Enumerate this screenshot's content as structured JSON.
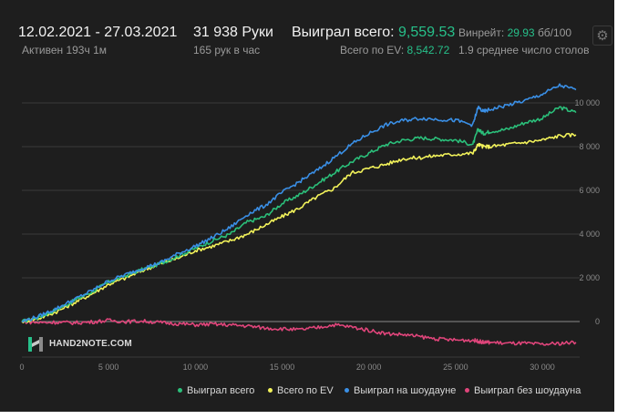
{
  "header": {
    "date_range": "12.02.2021 - 27.03.2021",
    "active": "Активен 193ч 1м",
    "hands": "31 938 Руки",
    "hands_per_hour": "165 рук в час",
    "won_total_label": "Выиграл всего:",
    "won_total_value": "9,559.53",
    "ev_total_label": "Всего по EV:",
    "ev_total_value": "8,542.72",
    "winrate_label": "Винрейт:",
    "winrate_value": "29.93",
    "winrate_unit": "бб/100",
    "avg_tables": "1.9 среднее число столов"
  },
  "logo": {
    "text": "HAND2NOTE.COM"
  },
  "colors": {
    "won_total": "#2bbf7a",
    "ev": "#f2f25a",
    "showdown": "#3a8fe6",
    "non_showdown": "#e0457b"
  },
  "chart_data": {
    "type": "line",
    "xlim": [
      0,
      31938
    ],
    "ylim": [
      -1200,
      10900
    ],
    "x_ticks": [
      {
        "value": 0,
        "label": "0"
      },
      {
        "value": 5000,
        "label": "5 000"
      },
      {
        "value": 10000,
        "label": "10 000"
      },
      {
        "value": 15000,
        "label": "15 000"
      },
      {
        "value": 20000,
        "label": "20 000"
      },
      {
        "value": 25000,
        "label": "25 000"
      },
      {
        "value": 30000,
        "label": "30 000"
      }
    ],
    "y_ticks": [
      {
        "value": 0,
        "label": "0"
      },
      {
        "value": 2000,
        "label": "2 000"
      },
      {
        "value": 4000,
        "label": "4 000"
      },
      {
        "value": 6000,
        "label": "6 000"
      },
      {
        "value": 8000,
        "label": "8 000"
      },
      {
        "value": 10000,
        "label": "10 000"
      }
    ],
    "grid": true,
    "legend_position": "bottom-right",
    "x": [
      0,
      1000,
      2000,
      3000,
      4000,
      5000,
      6000,
      7000,
      8000,
      9000,
      10000,
      11000,
      12000,
      13000,
      14000,
      15000,
      16000,
      17000,
      18000,
      19000,
      20000,
      21000,
      22000,
      23000,
      24000,
      25000,
      26000,
      26300,
      26600,
      27000,
      28000,
      29000,
      30000,
      31000,
      31938
    ],
    "series": [
      {
        "name": "Выиграл всего",
        "values": [
          0,
          200,
          550,
          950,
          1350,
          1800,
          2100,
          2400,
          2650,
          3000,
          3350,
          3700,
          4000,
          4550,
          4800,
          5400,
          5800,
          6300,
          6800,
          7300,
          7700,
          8100,
          8300,
          8400,
          8350,
          8300,
          8100,
          8800,
          8600,
          8700,
          8800,
          9100,
          9300,
          9800,
          9560
        ]
      },
      {
        "name": "Всего по EV",
        "values": [
          0,
          150,
          450,
          850,
          1250,
          1700,
          2000,
          2350,
          2650,
          2900,
          3250,
          3450,
          3700,
          4000,
          4400,
          4800,
          5200,
          5700,
          6100,
          6800,
          7000,
          7200,
          7450,
          7500,
          7600,
          7650,
          7700,
          8100,
          8000,
          8000,
          8100,
          8200,
          8300,
          8500,
          8543
        ]
      },
      {
        "name": "Выиграл на шоудауне",
        "values": [
          0,
          250,
          600,
          1000,
          1400,
          1850,
          2150,
          2450,
          2700,
          3100,
          3450,
          3850,
          4300,
          4900,
          5300,
          5900,
          6400,
          6900,
          7500,
          8100,
          8600,
          9000,
          9200,
          9300,
          9250,
          9200,
          9000,
          9800,
          9600,
          9700,
          9900,
          10100,
          10400,
          10800,
          10600
        ]
      },
      {
        "name": "Выиграл без шоудауна",
        "values": [
          0,
          -50,
          -30,
          -60,
          -20,
          50,
          0,
          20,
          -50,
          -100,
          -150,
          -120,
          -160,
          -200,
          -300,
          -330,
          -380,
          -280,
          -150,
          -250,
          -400,
          -550,
          -600,
          -700,
          -800,
          -850,
          -850,
          -900,
          -950,
          -950,
          -1000,
          -1000,
          -1050,
          -1000,
          -950
        ]
      }
    ]
  }
}
